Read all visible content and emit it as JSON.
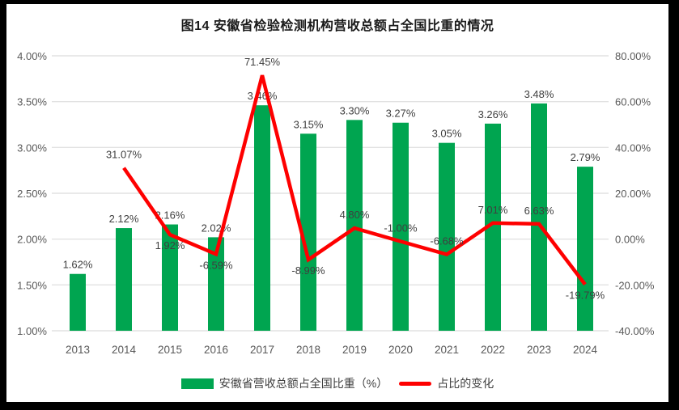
{
  "title": "图14 安徽省检验检测机构营收总额占全国比重的情况",
  "chart_data": {
    "type": "combo-bar-line",
    "categories": [
      "2013",
      "2014",
      "2015",
      "2016",
      "2017",
      "2018",
      "2019",
      "2020",
      "2021",
      "2022",
      "2023",
      "2024"
    ],
    "series": [
      {
        "name": "安徽省营收总额占全国比重（%）",
        "type": "bar",
        "axis": "left",
        "color": "#00A550",
        "values": [
          1.62,
          2.12,
          2.16,
          2.02,
          3.46,
          3.15,
          3.3,
          3.27,
          3.05,
          3.26,
          3.48,
          2.79
        ],
        "labels": [
          "1.62%",
          "2.12%",
          "2.16%",
          "2.02%",
          "3.46%",
          "3.15%",
          "3.30%",
          "3.27%",
          "3.05%",
          "3.26%",
          "3.48%",
          "2.79%"
        ]
      },
      {
        "name": "占比的变化",
        "type": "line",
        "axis": "right",
        "color": "#FE0000",
        "values": [
          null,
          31.07,
          1.92,
          -6.59,
          71.45,
          -8.99,
          4.8,
          -1.0,
          -6.68,
          7.01,
          6.63,
          -19.79
        ],
        "labels": [
          null,
          "31.07%",
          "1.92%",
          "-6.59%",
          "71.45%",
          "-8.99%",
          "4.80%",
          "-1.00%",
          "-6.68%",
          "7.01%",
          "6.63%",
          "-19.79%"
        ],
        "label_positions": [
          null,
          "above",
          "below",
          "below",
          "above",
          "below",
          "above",
          "above",
          "above",
          "above",
          "above",
          "below"
        ]
      }
    ],
    "left_axis": {
      "min": 1.0,
      "max": 4.0,
      "step": 0.5,
      "ticks": [
        "1.00%",
        "1.50%",
        "2.00%",
        "2.50%",
        "3.00%",
        "3.50%",
        "4.00%"
      ]
    },
    "right_axis": {
      "min": -40,
      "max": 80,
      "step": 20,
      "ticks": [
        "-40.00%",
        "-20.00%",
        "0.00%",
        "20.00%",
        "40.00%",
        "60.00%",
        "80.00%"
      ]
    },
    "gridlines": true,
    "legend_position": "bottom",
    "colors": {
      "gridline": "#E2E2E2",
      "axis_text": "#595959",
      "data_label": "#3F3F3F",
      "title_text": "#1A1A1A",
      "frame": "#000000",
      "canvas": "#FFFFFF"
    }
  }
}
